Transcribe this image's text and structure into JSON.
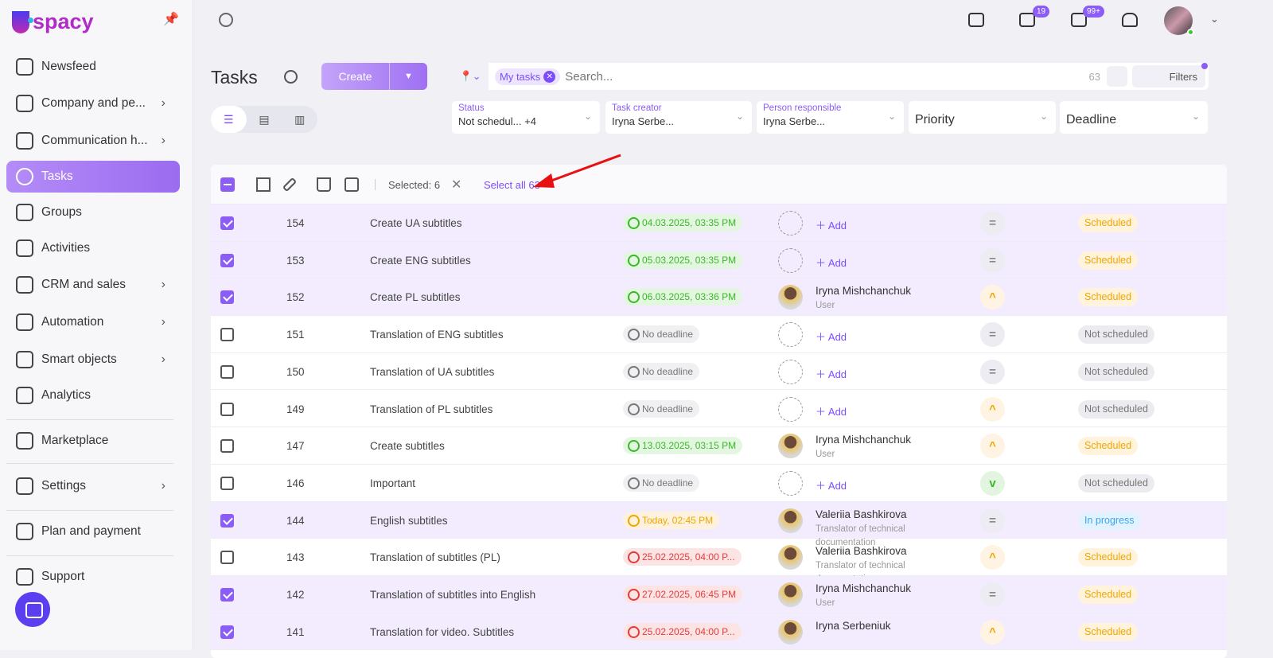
{
  "brand": {
    "name": "spacy",
    "logo_letter": "U"
  },
  "sidebar": {
    "items": [
      {
        "label": "Newsfeed",
        "icon": "home-icon",
        "chev": false
      },
      {
        "label": "Company and pe...",
        "icon": "building-icon",
        "chev": true
      },
      {
        "label": "Communication h...",
        "icon": "chat-icon",
        "chev": true
      },
      {
        "label": "Tasks",
        "icon": "check-circle-icon",
        "chev": false,
        "active": true
      },
      {
        "label": "Groups",
        "icon": "users-icon",
        "chev": false
      },
      {
        "label": "Activities",
        "icon": "calendar-icon",
        "chev": false
      },
      {
        "label": "CRM and sales",
        "icon": "coins-icon",
        "chev": true
      },
      {
        "label": "Automation",
        "icon": "bolt-icon",
        "chev": true
      },
      {
        "label": "Smart objects",
        "icon": "scan-icon",
        "chev": true
      },
      {
        "label": "Analytics",
        "icon": "chart-icon",
        "chev": false
      },
      {
        "label": "Marketplace",
        "icon": "store-icon",
        "chev": false
      },
      {
        "label": "Settings",
        "icon": "gear-icon",
        "chev": true
      },
      {
        "label": "Plan and payment",
        "icon": "wallet-icon",
        "chev": false
      },
      {
        "label": "Support",
        "icon": "help-icon",
        "chev": false
      }
    ]
  },
  "topbar": {
    "chat_badge": "19",
    "mail_badge": "99+"
  },
  "page": {
    "title": "Tasks",
    "create_label": "Create"
  },
  "search": {
    "chip": "My tasks",
    "placeholder": "Search...",
    "count": "63",
    "filters_label": "Filters"
  },
  "filters": [
    {
      "label": "Status",
      "value": "Not schedul...  +4"
    },
    {
      "label": "Task creator",
      "value": "Iryna Serbe..."
    },
    {
      "label": "Person responsible",
      "value": "Iryna Serbe..."
    },
    {
      "label": "",
      "value": "Priority"
    },
    {
      "label": "",
      "value": "Deadline"
    }
  ],
  "toolbar": {
    "selected": "Selected: 6",
    "select_all": "Select all 63"
  },
  "colors": {
    "accent": "#8b5cf6"
  },
  "rows": [
    {
      "checked": true,
      "id": "154",
      "title": "Create UA subtitles",
      "deadline": "04.03.2025, 03:35 PM",
      "dl": "green",
      "person": null,
      "add": "Add",
      "priority": "medium",
      "status": "Scheduled"
    },
    {
      "checked": true,
      "id": "153",
      "title": "Create ENG subtitles",
      "deadline": "05.03.2025, 03:35 PM",
      "dl": "green",
      "person": null,
      "add": "Add",
      "priority": "medium",
      "status": "Scheduled"
    },
    {
      "checked": true,
      "id": "152",
      "title": "Create PL subtitles",
      "deadline": "06.03.2025, 03:36 PM",
      "dl": "green",
      "person": "Iryna Mishchanchuk",
      "role": "User",
      "priority": "high",
      "status": "Scheduled"
    },
    {
      "checked": false,
      "id": "151",
      "title": "Translation of ENG subtitles",
      "deadline": "No deadline",
      "dl": "gray",
      "person": null,
      "add": "Add",
      "priority": "medium",
      "status": "Not scheduled"
    },
    {
      "checked": false,
      "id": "150",
      "title": "Translation of UA subtitles",
      "deadline": "No deadline",
      "dl": "gray",
      "person": null,
      "add": "Add",
      "priority": "medium",
      "status": "Not scheduled"
    },
    {
      "checked": false,
      "id": "149",
      "title": "Translation of PL subtitles",
      "deadline": "No deadline",
      "dl": "gray",
      "person": null,
      "add": "Add",
      "priority": "high",
      "status": "Not scheduled"
    },
    {
      "checked": false,
      "id": "147",
      "title": "Create subtitles",
      "deadline": "13.03.2025, 03:15 PM",
      "dl": "green",
      "person": "Iryna Mishchanchuk",
      "role": "User",
      "priority": "high",
      "status": "Scheduled"
    },
    {
      "checked": false,
      "id": "146",
      "title": "Important",
      "deadline": "No deadline",
      "dl": "gray",
      "person": null,
      "add": "Add",
      "priority": "low",
      "status": "Not scheduled"
    },
    {
      "checked": true,
      "id": "144",
      "title": "English subtitles",
      "deadline": "Today, 02:45 PM",
      "dl": "orange",
      "person": "Valeriia Bashkirova",
      "role": "Translator of technical documentation",
      "priority": "medium",
      "status": "In progress"
    },
    {
      "checked": false,
      "id": "143",
      "title": "Translation of subtitles (PL)",
      "deadline": "25.02.2025, 04:00 P...",
      "dl": "red",
      "person": "Valeriia Bashkirova",
      "role": "Translator of technical documentation",
      "priority": "high",
      "status": "Scheduled"
    },
    {
      "checked": true,
      "id": "142",
      "title": "Translation of subtitles into English",
      "deadline": "27.02.2025, 06:45 PM",
      "dl": "red",
      "person": "Iryna Mishchanchuk",
      "role": "User",
      "priority": "medium",
      "status": "Scheduled"
    },
    {
      "checked": true,
      "id": "141",
      "title": "Translation for video. Subtitles",
      "deadline": "25.02.2025, 04:00 P...",
      "dl": "red",
      "person": "Iryna Serbeniuk",
      "role": "",
      "priority": "high",
      "status": "Scheduled"
    }
  ]
}
